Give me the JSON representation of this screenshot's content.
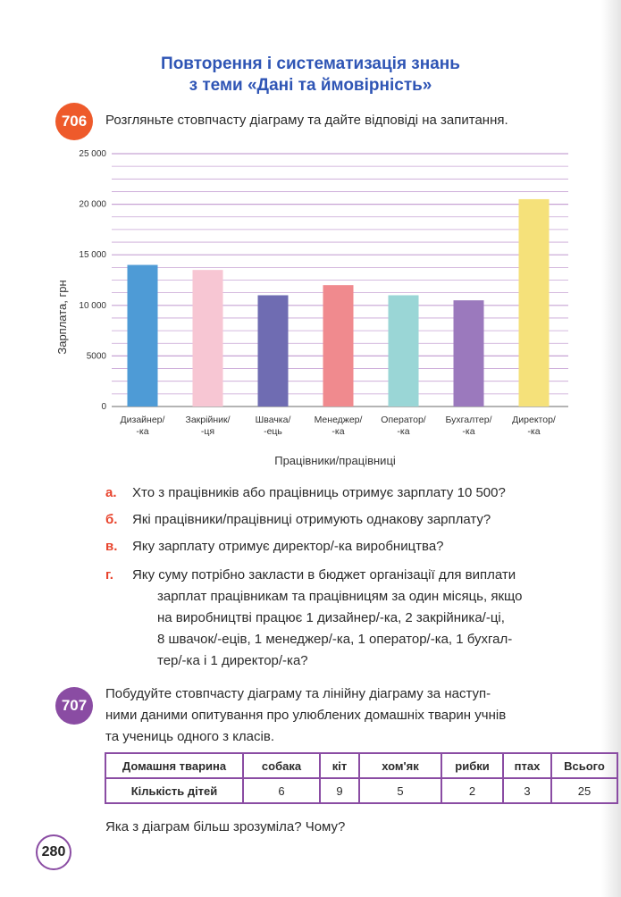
{
  "title": {
    "line1": "Повторення і систематизація знань",
    "line2": "з теми «Дані та ймовірність»"
  },
  "task706": {
    "number": "706",
    "text": "Розгляньте стовпчасту діаграму та дайте відповіді на запитання."
  },
  "chart_data": {
    "type": "bar",
    "categories": [
      [
        "Дизайнер/",
        "-ка"
      ],
      [
        "Закрійник/",
        "-ця"
      ],
      [
        "Швачка/",
        "-ець"
      ],
      [
        "Менеджер/",
        "-ка"
      ],
      [
        "Оператор/",
        "-ка"
      ],
      [
        "Бухгалтер/",
        "-ка"
      ],
      [
        "Директор/",
        "-ка"
      ]
    ],
    "values": [
      14000,
      13500,
      11000,
      12000,
      11000,
      10500,
      20500
    ],
    "colors": [
      "#4e9bd6",
      "#f7c6d3",
      "#6f6cb2",
      "#f08a8e",
      "#9ad6d6",
      "#9b79bd",
      "#f5e17a"
    ],
    "ylabel": "Зарплата, грн",
    "xlabel": "Працівники/працівниці",
    "ylim": [
      0,
      25000
    ],
    "yticks": [
      "0",
      "5000",
      "10 000",
      "15 000",
      "20 000",
      "25 000"
    ],
    "grid_color": "#c7a3d4",
    "grid": true
  },
  "questions": {
    "a": {
      "letter": "а.",
      "text": "Хто з працівників або працівниць отримує зарплату 10 500?"
    },
    "b": {
      "letter": "б.",
      "text": "Які працівники/працівниці отримують однакову зарплату?"
    },
    "v": {
      "letter": "в.",
      "text": "Яку зарплату отримує директор/-ка виробництва?"
    },
    "g": {
      "letter": "г.",
      "lines": [
        "Яку суму потрібно закласти в бюджет організації для виплати",
        "зарплат працівникам та працівницям за один місяць, якщо",
        "на виробництві працює 1 дизайнер/-ка, 2 закрійника/-ці,",
        "8 швачок/-еців, 1 менеджер/-ка, 1 оператор/-ка, 1 бухгал-",
        "тер/-ка і 1 директор/-ка?"
      ]
    }
  },
  "task707": {
    "number": "707",
    "lines": [
      "Побудуйте стовпчасту діаграму та лінійну діаграму за наступ-",
      "ними даними опитування про улюблених домашніх тварин учнів",
      "та учениць одного з класів."
    ],
    "table": {
      "header": [
        "Домашня тварина",
        "собака",
        "кіт",
        "хом'як",
        "рибки",
        "птах",
        "Всього"
      ],
      "row": [
        "Кількість дітей",
        "6",
        "9",
        "5",
        "2",
        "3",
        "25"
      ]
    },
    "final_question": "Яка з діаграм більш зрозуміла? Чому?"
  },
  "page_number": "280"
}
